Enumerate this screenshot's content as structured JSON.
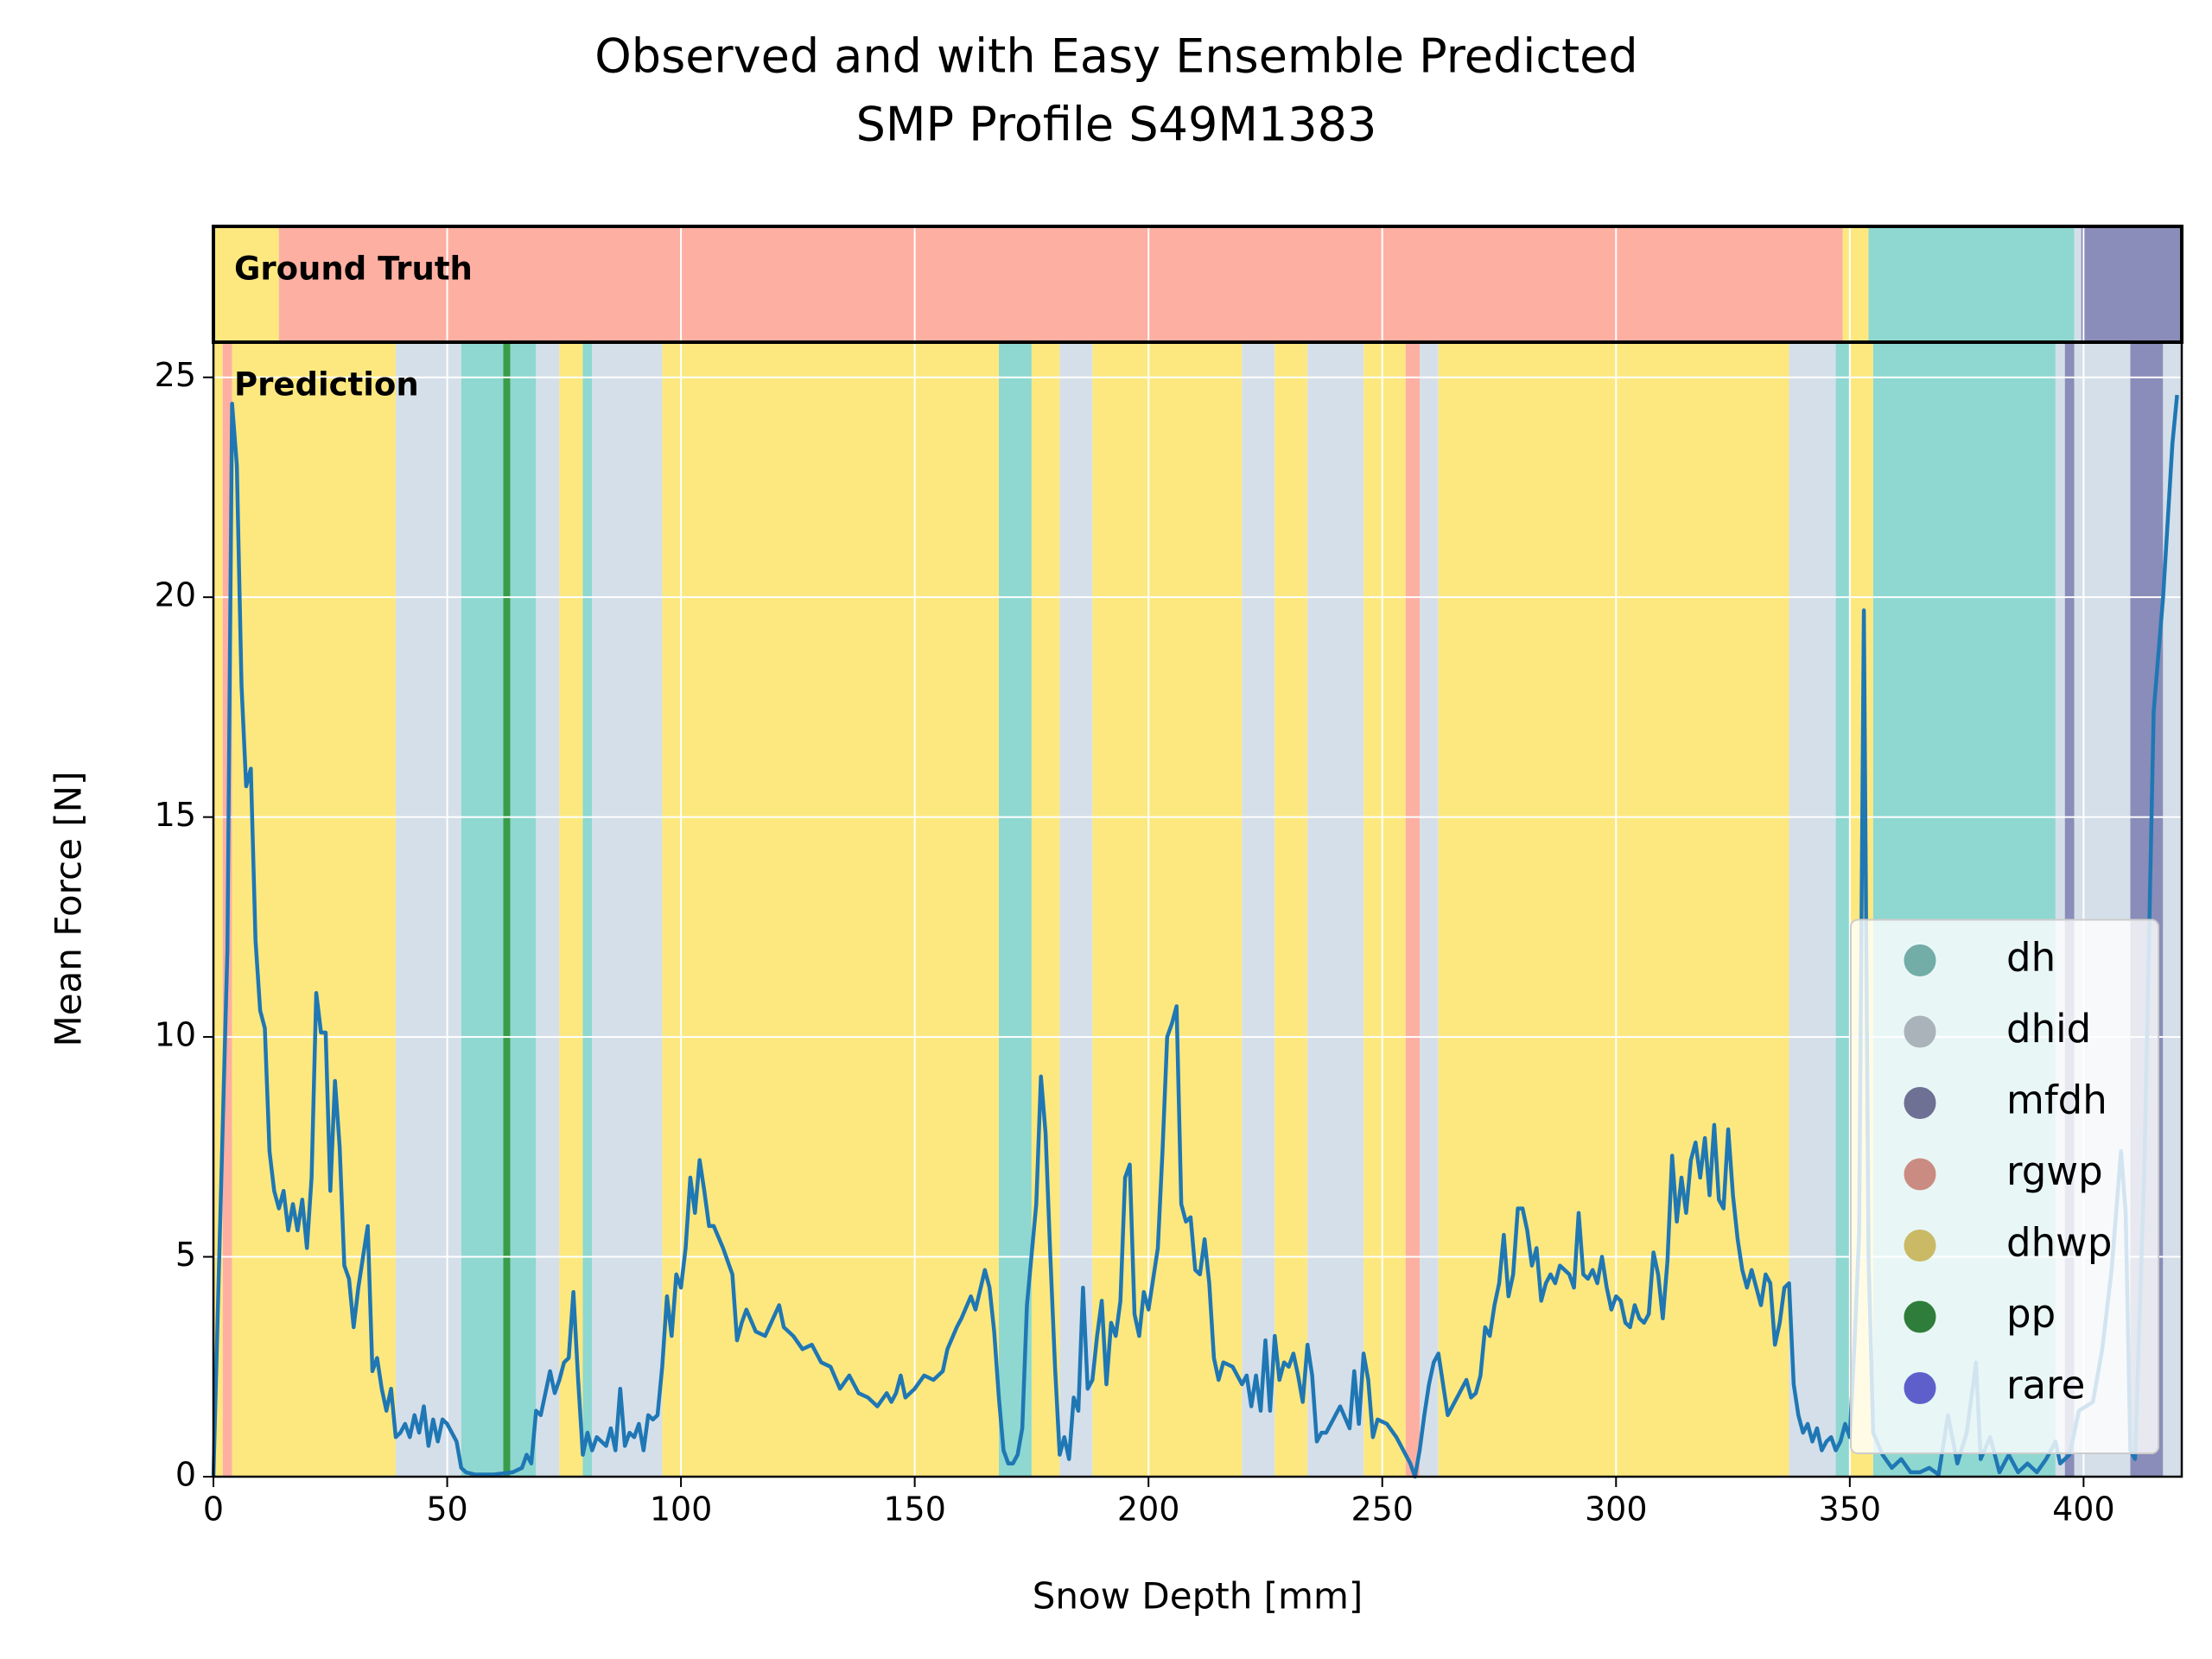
{
  "chart_data": {
    "type": "line",
    "title": [
      "Observed and with Easy Ensemble Predicted",
      "SMP Profile S49M1383"
    ],
    "xlabel": "Snow Depth [mm]",
    "ylabel": "Mean Force [N]",
    "xlim": [
      0,
      421
    ],
    "ylim": [
      0,
      25.8
    ],
    "xticks": [
      0,
      50,
      100,
      150,
      200,
      250,
      300,
      350,
      400
    ],
    "yticks": [
      0,
      5,
      10,
      15,
      20,
      25
    ],
    "grid": true,
    "color": "#1f77b4",
    "legend": "lower right",
    "classes": [
      {
        "name": "dh",
        "color": "#8ed8d1"
      },
      {
        "name": "dhid",
        "color": "#d5dfe9"
      },
      {
        "name": "mfdh",
        "color": "#8a8cb9"
      },
      {
        "name": "rgwp",
        "color": "#fdafa2"
      },
      {
        "name": "dhwp",
        "color": "#fde87f"
      },
      {
        "name": "pp",
        "color": "#3a9c48"
      },
      {
        "name": "rare",
        "color": "#7777ff"
      }
    ],
    "ground_truth": {
      "label": "Ground Truth",
      "segments": [
        {
          "start": 0,
          "end": 14,
          "class": 4
        },
        {
          "start": 14,
          "end": 348.5,
          "class": 3
        },
        {
          "start": 348.5,
          "end": 354,
          "class": 4
        },
        {
          "start": 354,
          "end": 398,
          "class": 0
        },
        {
          "start": 398,
          "end": 399.5,
          "class": 1
        },
        {
          "start": 399.5,
          "end": 421,
          "class": 2
        }
      ]
    },
    "prediction": {
      "label": "Prediction",
      "segments": [
        {
          "start": 0,
          "end": 2,
          "class": 4
        },
        {
          "start": 2,
          "end": 4,
          "class": 3
        },
        {
          "start": 4,
          "end": 39,
          "class": 4
        },
        {
          "start": 39,
          "end": 53,
          "class": 1
        },
        {
          "start": 53,
          "end": 62,
          "class": 0
        },
        {
          "start": 62,
          "end": 63.5,
          "class": 5
        },
        {
          "start": 63.5,
          "end": 69,
          "class": 0
        },
        {
          "start": 69,
          "end": 74,
          "class": 1
        },
        {
          "start": 74,
          "end": 79,
          "class": 4
        },
        {
          "start": 79,
          "end": 81,
          "class": 0
        },
        {
          "start": 81,
          "end": 96,
          "class": 1
        },
        {
          "start": 96,
          "end": 168,
          "class": 4
        },
        {
          "start": 168,
          "end": 175,
          "class": 0
        },
        {
          "start": 175,
          "end": 181,
          "class": 4
        },
        {
          "start": 181,
          "end": 188,
          "class": 1
        },
        {
          "start": 188,
          "end": 220,
          "class": 4
        },
        {
          "start": 220,
          "end": 227,
          "class": 1
        },
        {
          "start": 227,
          "end": 234,
          "class": 4
        },
        {
          "start": 234,
          "end": 246,
          "class": 1
        },
        {
          "start": 246,
          "end": 255,
          "class": 4
        },
        {
          "start": 255,
          "end": 258,
          "class": 3
        },
        {
          "start": 258,
          "end": 262,
          "class": 1
        },
        {
          "start": 262,
          "end": 337,
          "class": 4
        },
        {
          "start": 337,
          "end": 347,
          "class": 1
        },
        {
          "start": 347,
          "end": 350,
          "class": 0
        },
        {
          "start": 350,
          "end": 355,
          "class": 4
        },
        {
          "start": 355,
          "end": 394,
          "class": 0
        },
        {
          "start": 394,
          "end": 396,
          "class": 1
        },
        {
          "start": 396,
          "end": 398,
          "class": 2
        },
        {
          "start": 398,
          "end": 410,
          "class": 1
        },
        {
          "start": 410,
          "end": 417,
          "class": 2
        },
        {
          "start": 417,
          "end": 421,
          "class": 1
        }
      ]
    },
    "x": [
      0,
      1,
      3,
      4,
      5,
      6,
      7,
      8,
      9,
      10,
      11,
      12,
      13,
      14,
      15,
      16,
      17,
      18,
      19,
      20,
      21,
      22,
      23,
      24,
      25,
      26,
      27,
      28,
      29,
      30,
      31,
      33,
      34,
      35,
      36,
      37,
      38,
      39,
      40,
      41,
      42,
      43,
      44,
      45,
      46,
      47,
      48,
      49,
      50,
      52,
      53,
      54,
      56,
      60,
      64,
      66,
      67,
      68,
      69,
      70,
      72,
      73,
      74,
      75,
      76,
      77,
      78,
      79,
      80,
      81,
      82,
      84,
      85,
      86,
      87,
      88,
      89,
      90,
      91,
      92,
      93,
      94,
      95,
      96,
      97,
      98,
      99,
      100,
      101,
      102,
      103,
      104,
      105,
      106,
      107,
      109,
      111,
      112,
      113,
      114,
      116,
      118,
      121,
      122,
      124,
      126,
      128,
      130,
      132,
      134,
      136,
      138,
      140,
      142,
      144,
      145,
      146,
      147,
      148,
      150,
      152,
      154,
      156,
      157,
      159,
      160,
      162,
      163,
      165,
      166,
      167,
      168,
      169,
      170,
      171,
      172,
      173,
      174,
      176,
      177,
      178,
      179,
      180,
      181,
      182,
      183,
      184,
      185,
      186,
      187,
      188,
      189,
      190,
      191,
      192,
      193,
      194,
      195,
      196,
      197,
      198,
      199,
      200,
      202,
      203,
      204,
      205,
      206,
      207,
      208,
      209,
      210,
      211,
      212,
      213,
      214,
      215,
      216,
      218,
      220,
      221,
      222,
      223,
      224,
      225,
      226,
      227,
      228,
      229,
      230,
      231,
      232,
      233,
      234,
      235,
      236,
      237,
      238,
      239,
      241,
      243,
      244,
      245,
      246,
      247,
      248,
      249,
      251,
      253,
      255,
      256,
      257,
      258,
      259,
      260,
      261,
      262,
      263,
      264,
      266,
      268,
      269,
      270,
      271,
      272,
      273,
      274,
      275,
      276,
      277,
      278,
      279,
      280,
      281,
      282,
      283,
      284,
      285,
      286,
      287,
      288,
      289,
      290,
      291,
      292,
      293,
      294,
      295,
      296,
      297,
      298,
      299,
      300,
      301,
      302,
      303,
      304,
      305,
      306,
      307,
      308,
      309,
      310,
      311,
      312,
      313,
      314,
      315,
      316,
      317,
      318,
      319,
      320,
      321,
      322,
      323,
      324,
      325,
      326,
      327,
      328,
      329,
      330,
      331,
      332,
      333,
      334,
      335,
      336,
      337,
      338,
      339,
      340,
      341,
      342,
      343,
      344,
      345,
      346,
      347,
      348,
      349,
      350,
      351,
      352,
      353,
      354,
      355,
      357,
      359,
      361,
      363,
      365,
      367,
      369,
      371,
      373,
      375,
      377,
      378,
      380,
      382,
      384,
      386,
      388,
      390,
      392,
      394,
      395,
      397,
      399,
      402,
      404,
      406,
      408,
      409,
      410,
      411,
      413,
      415,
      417,
      419,
      420
    ],
    "values": [
      0,
      4,
      12,
      24.4,
      23,
      18,
      15.7,
      16.1,
      12.2,
      10.6,
      10.2,
      7.4,
      6.5,
      6.1,
      6.5,
      5.6,
      6.2,
      5.6,
      6.3,
      5.2,
      6.8,
      11,
      10.1,
      10.1,
      6.5,
      9,
      7.5,
      4.8,
      4.5,
      3.4,
      4.3,
      5.7,
      2.4,
      2.7,
      2,
      1.5,
      2,
      0.9,
      1,
      1.2,
      0.9,
      1.4,
      1,
      1.6,
      0.7,
      1.3,
      0.8,
      1.3,
      1.2,
      0.8,
      0.2,
      0.1,
      0.05,
      0.05,
      0.1,
      0.2,
      0.5,
      0.3,
      1.5,
      1.4,
      2.4,
      1.9,
      2.2,
      2.6,
      2.7,
      4.2,
      2.2,
      0.5,
      1,
      0.6,
      0.9,
      0.7,
      1.1,
      0.6,
      2,
      0.7,
      1,
      0.9,
      1.2,
      0.6,
      1.4,
      1.3,
      1.4,
      2.5,
      4.1,
      3.2,
      4.6,
      4.3,
      5.2,
      6.8,
      6,
      7.2,
      6.5,
      5.7,
      5.7,
      5.2,
      4.6,
      3.1,
      3.5,
      3.8,
      3.3,
      3.2,
      3.9,
      3.4,
      3.2,
      2.9,
      3,
      2.6,
      2.5,
      2,
      2.3,
      1.9,
      1.8,
      1.6,
      1.9,
      1.7,
      1.9,
      2.3,
      1.8,
      2,
      2.3,
      2.2,
      2.4,
      2.9,
      3.4,
      3.6,
      4.1,
      3.8,
      4.7,
      4.3,
      3.3,
      1.8,
      0.6,
      0.3,
      0.3,
      0.5,
      1.1,
      3.9,
      6.2,
      9.1,
      7.8,
      5,
      2.5,
      0.5,
      0.9,
      0.4,
      1.8,
      1.5,
      4.3,
      2,
      2.2,
      3.2,
      4,
      2.1,
      3.5,
      3.2,
      4,
      6.8,
      7.1,
      3.7,
      3.2,
      4.2,
      3.8,
      5.2,
      7.4,
      10,
      10.3,
      10.7,
      6.2,
      5.8,
      5.9,
      4.7,
      4.6,
      5.4,
      4.4,
      2.7,
      2.2,
      2.6,
      2.5,
      2.1,
      2.3,
      1.6,
      2.3,
      1.5,
      3.1,
      1.5,
      3.2,
      2.2,
      2.6,
      2.5,
      2.8,
      2.3,
      1.7,
      3,
      2.3,
      0.8,
      1,
      1,
      1.2,
      1.6,
      1.1,
      2.4,
      1.2,
      2.8,
      2.2,
      0.9,
      1.3,
      1.2,
      0.9,
      0.5,
      0.3,
      0,
      0.6,
      1.4,
      2.1,
      2.6,
      2.8,
      2.1,
      1.4,
      1.8,
      2.2,
      1.8,
      1.9,
      2.3,
      3.4,
      3.2,
      3.9,
      4.4,
      5.5,
      4.1,
      4.6,
      6.1,
      6.1,
      5.6,
      4.8,
      5.2,
      4,
      4.4,
      4.6,
      4.4,
      4.8,
      4.7,
      4.6,
      4.3,
      6,
      4.6,
      4.5,
      4.7,
      4.4,
      5,
      4.3,
      3.8,
      4.1,
      4,
      3.5,
      3.4,
      3.9,
      3.6,
      3.5,
      3.7,
      5.1,
      4.6,
      3.6,
      4.9,
      7.3,
      5.8,
      6.8,
      6,
      7.2,
      7.6,
      6.8,
      7.7,
      6.4,
      8,
      6.3,
      6.1,
      7.9,
      6.4,
      5.4,
      4.7,
      4.3,
      4.7,
      4.3,
      3.9,
      4.6,
      4.4,
      3,
      3.5,
      4.3,
      4.4,
      2.1,
      1.4,
      1,
      1.2,
      0.8,
      1.1,
      0.6,
      0.8,
      0.9,
      0.6,
      0.8,
      1.2,
      0.9,
      3,
      5.5,
      19.7,
      5,
      1,
      0.5,
      0.2,
      0.4,
      0.1,
      0.1,
      0.2,
      0.05,
      1.4,
      0.3,
      1,
      2.6,
      0.4,
      0.9,
      0.1,
      0.5,
      0.1,
      0.3,
      0.1,
      0.4,
      0.8,
      0.3,
      0.5,
      1.5,
      1.7,
      2.9,
      4.7,
      7.4,
      6,
      0.6,
      0.4,
      7,
      17.4,
      20,
      23.5,
      24.6
    ]
  }
}
